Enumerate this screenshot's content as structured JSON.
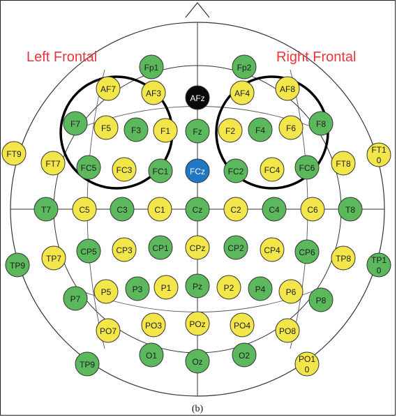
{
  "regions": {
    "left": "Left Frontal",
    "right": "Right Frontal"
  },
  "caption": "(b)",
  "colors": {
    "green": "#5cb85c",
    "yellow": "#f2e64a",
    "black": "#0a0a0a",
    "blue": "#1f78c1",
    "outline": "#333333",
    "region_label": "#e8353a"
  },
  "electrodes": [
    {
      "id": "Fp1",
      "color": "green"
    },
    {
      "id": "Fp2",
      "color": "green"
    },
    {
      "id": "AF7",
      "color": "yellow"
    },
    {
      "id": "AF3",
      "color": "yellow"
    },
    {
      "id": "AFz",
      "color": "black"
    },
    {
      "id": "AF4",
      "color": "yellow"
    },
    {
      "id": "AF8",
      "color": "yellow"
    },
    {
      "id": "F7",
      "color": "green"
    },
    {
      "id": "F5",
      "color": "yellow"
    },
    {
      "id": "F3",
      "color": "green"
    },
    {
      "id": "F1",
      "color": "yellow"
    },
    {
      "id": "Fz",
      "color": "green"
    },
    {
      "id": "F2",
      "color": "yellow"
    },
    {
      "id": "F4",
      "color": "green"
    },
    {
      "id": "F6",
      "color": "yellow"
    },
    {
      "id": "F8",
      "color": "green"
    },
    {
      "id": "FT9",
      "color": "yellow"
    },
    {
      "id": "FT7",
      "color": "yellow"
    },
    {
      "id": "FC5",
      "color": "green"
    },
    {
      "id": "FC3",
      "color": "yellow"
    },
    {
      "id": "FC1",
      "color": "green"
    },
    {
      "id": "FCz",
      "color": "blue"
    },
    {
      "id": "FC2",
      "color": "green"
    },
    {
      "id": "FC4",
      "color": "yellow"
    },
    {
      "id": "FC6",
      "color": "green"
    },
    {
      "id": "FT8",
      "color": "yellow"
    },
    {
      "id": "FT10",
      "color": "yellow"
    },
    {
      "id": "T7",
      "color": "green"
    },
    {
      "id": "C5",
      "color": "yellow"
    },
    {
      "id": "C3",
      "color": "green"
    },
    {
      "id": "C1",
      "color": "yellow"
    },
    {
      "id": "Cz",
      "color": "green"
    },
    {
      "id": "C2",
      "color": "yellow"
    },
    {
      "id": "C4",
      "color": "green"
    },
    {
      "id": "C6",
      "color": "yellow"
    },
    {
      "id": "T8",
      "color": "green"
    },
    {
      "id": "TP9",
      "color": "green"
    },
    {
      "id": "TP7",
      "color": "yellow"
    },
    {
      "id": "CP5",
      "color": "green"
    },
    {
      "id": "CP3",
      "color": "yellow"
    },
    {
      "id": "CP1",
      "color": "green"
    },
    {
      "id": "CPz",
      "color": "yellow"
    },
    {
      "id": "CP2",
      "color": "green"
    },
    {
      "id": "CP4",
      "color": "yellow"
    },
    {
      "id": "CP6",
      "color": "green"
    },
    {
      "id": "TP8",
      "color": "yellow"
    },
    {
      "id": "TP10",
      "color": "green"
    },
    {
      "id": "P7",
      "color": "green"
    },
    {
      "id": "P5",
      "color": "yellow"
    },
    {
      "id": "P3",
      "color": "green"
    },
    {
      "id": "P1",
      "color": "yellow"
    },
    {
      "id": "Pz",
      "color": "green"
    },
    {
      "id": "P2",
      "color": "yellow"
    },
    {
      "id": "P4",
      "color": "green"
    },
    {
      "id": "P6",
      "color": "yellow"
    },
    {
      "id": "P8",
      "color": "green"
    },
    {
      "id": "PO7",
      "color": "yellow"
    },
    {
      "id": "PO3",
      "color": "yellow"
    },
    {
      "id": "POz",
      "color": "yellow"
    },
    {
      "id": "PO4",
      "color": "yellow"
    },
    {
      "id": "PO8",
      "color": "yellow"
    },
    {
      "id": "O1",
      "color": "green"
    },
    {
      "id": "Oz",
      "color": "green"
    },
    {
      "id": "O2",
      "color": "green"
    },
    {
      "id": "TP9b",
      "label": "TP9",
      "color": "green"
    },
    {
      "id": "PO10",
      "color": "yellow"
    }
  ]
}
